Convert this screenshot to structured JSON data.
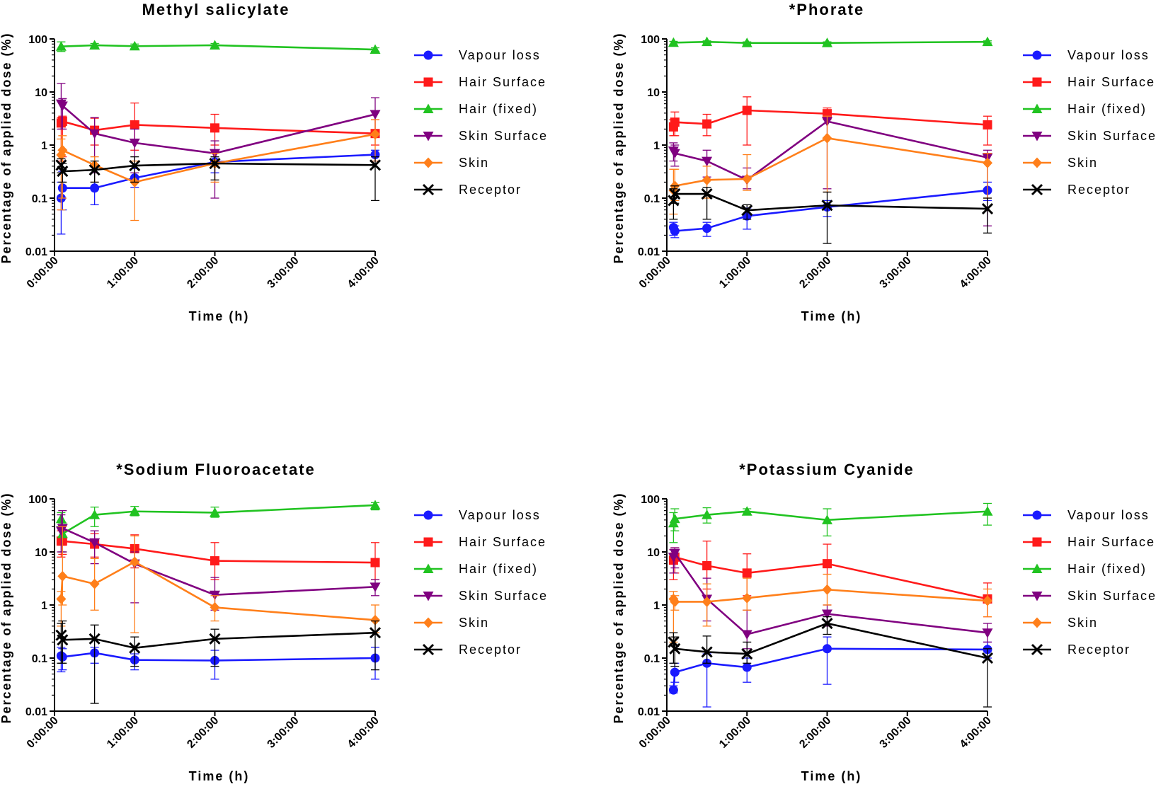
{
  "legend_entries": [
    "Vapour loss",
    "Hair Surface",
    "Hair (fixed)",
    "Skin Surface",
    "Skin",
    "Receptor"
  ],
  "chart_data": [
    {
      "type": "line",
      "title": "Methyl salicylate",
      "xlabel": "Time (h)",
      "ylabel": "Percentage of applied dose (%)",
      "yscale": "log",
      "ylim": [
        0.01,
        100
      ],
      "xlim": [
        0,
        4
      ],
      "x_ticks": [
        0,
        1,
        2,
        3,
        4
      ],
      "x_tick_labels": [
        "0:00:00",
        "1:00:00",
        "2:00:00",
        "3:00:00",
        "4:00:00"
      ],
      "y_ticks": [
        0.01,
        0.1,
        1,
        10,
        100
      ],
      "y_tick_labels": [
        "0.01",
        "0.1",
        "1",
        "10",
        "100"
      ],
      "legend_position": "right",
      "series": [
        {
          "name": "Vapour loss",
          "color": "#1a1aff",
          "marker": "circle",
          "x": [
            0.083,
            0.1,
            0.5,
            1,
            2,
            4
          ],
          "values": [
            0.1,
            0.155,
            0.155,
            0.24,
            0.48,
            0.66
          ],
          "err_low": [
            0.021,
            0.06,
            0.075,
            0.16,
            0.3,
            0.5
          ],
          "err_high": [
            0.2,
            0.32,
            0.3,
            0.36,
            0.6,
            0.8
          ]
        },
        {
          "name": "Hair Surface",
          "color": "#ff1a1a",
          "marker": "square",
          "x": [
            0.083,
            0.1,
            0.5,
            1,
            2,
            4
          ],
          "values": [
            2.6,
            2.8,
            1.9,
            2.4,
            2.1,
            1.65
          ],
          "err_low": [
            0.5,
            0.6,
            1.0,
            0.8,
            1.0,
            1.0
          ],
          "err_high": [
            3.3,
            3.5,
            3.2,
            6.2,
            3.8,
            3.0
          ]
        },
        {
          "name": "Hair (fixed)",
          "color": "#21c321",
          "marker": "triangle-up",
          "x": [
            0.083,
            0.5,
            1,
            2,
            4
          ],
          "values": [
            72,
            76,
            73,
            76,
            63
          ],
          "err_low": [
            58,
            70,
            66,
            70,
            58
          ],
          "err_high": [
            88,
            82,
            80,
            82,
            68
          ]
        },
        {
          "name": "Skin Surface",
          "color": "#800080",
          "marker": "triangle-down",
          "x": [
            0.083,
            0.1,
            0.5,
            1,
            2,
            4
          ],
          "values": [
            6.0,
            5.5,
            1.65,
            1.1,
            0.7,
            3.8
          ],
          "err_low": [
            2.0,
            2.0,
            0.3,
            0.3,
            0.1,
            1.5
          ],
          "err_high": [
            14.5,
            7.5,
            3.3,
            2.0,
            1.2,
            7.8
          ]
        },
        {
          "name": "Skin",
          "color": "#ff7f1a",
          "marker": "diamond",
          "x": [
            0.083,
            0.1,
            0.5,
            1,
            2,
            4
          ],
          "values": [
            0.65,
            0.8,
            0.42,
            0.2,
            0.45,
            1.6
          ],
          "err_low": [
            0.06,
            0.1,
            0.2,
            0.038,
            0.2,
            0.5
          ],
          "err_high": [
            1.3,
            1.5,
            0.6,
            0.5,
            0.7,
            3.0
          ]
        },
        {
          "name": "Receptor",
          "color": "#000000",
          "marker": "x",
          "x": [
            0.083,
            0.1,
            0.5,
            1,
            2,
            4
          ],
          "values": [
            0.42,
            0.32,
            0.34,
            0.41,
            0.45,
            0.42
          ],
          "err_low": [
            0.3,
            0.2,
            0.2,
            0.2,
            0.22,
            0.09
          ],
          "err_high": [
            0.55,
            0.45,
            0.5,
            0.6,
            0.6,
            0.6
          ]
        }
      ]
    },
    {
      "type": "line",
      "title": "*Phorate",
      "xlabel": "Time (h)",
      "ylabel": "Percentage of applied dose (%)",
      "yscale": "log",
      "ylim": [
        0.01,
        100
      ],
      "xlim": [
        0,
        4
      ],
      "x_ticks": [
        0,
        1,
        2,
        3,
        4
      ],
      "x_tick_labels": [
        "0:00:00",
        "1:00:00",
        "2:00:00",
        "3:00:00",
        "4:00:00"
      ],
      "y_ticks": [
        0.01,
        0.1,
        1,
        10,
        100
      ],
      "y_tick_labels": [
        "0.01",
        "0.1",
        "1",
        "10",
        "100"
      ],
      "legend_position": "right",
      "series": [
        {
          "name": "Vapour loss",
          "color": "#1a1aff",
          "marker": "circle",
          "x": [
            0.083,
            0.1,
            0.5,
            1,
            2,
            4
          ],
          "values": [
            0.028,
            0.024,
            0.027,
            0.046,
            0.068,
            0.14
          ],
          "err_low": [
            0.02,
            0.018,
            0.019,
            0.026,
            0.045,
            0.09
          ],
          "err_high": [
            0.035,
            0.03,
            0.035,
            0.065,
            0.09,
            0.2
          ]
        },
        {
          "name": "Hair Surface",
          "color": "#ff1a1a",
          "marker": "square",
          "x": [
            0.083,
            0.1,
            0.5,
            1,
            2,
            4
          ],
          "values": [
            2.2,
            2.7,
            2.5,
            4.5,
            3.9,
            2.4
          ],
          "err_low": [
            1.5,
            1.5,
            1.5,
            1.0,
            3.0,
            1.0
          ],
          "err_high": [
            3.0,
            4.2,
            3.8,
            8.1,
            5.0,
            3.5
          ]
        },
        {
          "name": "Hair (fixed)",
          "color": "#21c321",
          "marker": "triangle-up",
          "x": [
            0.083,
            0.5,
            1,
            2,
            4
          ],
          "values": [
            85,
            88,
            84,
            84,
            88
          ],
          "err_low": [
            78,
            84,
            80,
            80,
            84
          ],
          "err_high": [
            90,
            92,
            88,
            88,
            92
          ]
        },
        {
          "name": "Skin Surface",
          "color": "#800080",
          "marker": "triangle-down",
          "x": [
            0.083,
            0.1,
            0.5,
            1,
            2,
            4
          ],
          "values": [
            0.78,
            0.7,
            0.5,
            0.22,
            2.8,
            0.58
          ],
          "err_low": [
            0.5,
            0.4,
            0.25,
            0.15,
            0.15,
            0.03
          ],
          "err_high": [
            1.1,
            1.0,
            0.8,
            0.37,
            3.5,
            0.8
          ]
        },
        {
          "name": "Skin",
          "color": "#ff7f1a",
          "marker": "diamond",
          "x": [
            0.083,
            0.1,
            0.5,
            1,
            2,
            4
          ],
          "values": [
            0.14,
            0.17,
            0.22,
            0.23,
            1.35,
            0.46
          ],
          "err_low": [
            0.05,
            0.09,
            0.1,
            0.14,
            0.13,
            0.1
          ],
          "err_high": [
            0.35,
            0.35,
            0.4,
            0.66,
            3.5,
            0.7
          ]
        },
        {
          "name": "Receptor",
          "color": "#000000",
          "marker": "x",
          "x": [
            0.083,
            0.1,
            0.5,
            1,
            2,
            4
          ],
          "values": [
            0.09,
            0.12,
            0.12,
            0.059,
            0.073,
            0.063
          ],
          "err_low": [
            0.04,
            0.08,
            0.04,
            0.04,
            0.014,
            0.022
          ],
          "err_high": [
            0.15,
            0.17,
            0.16,
            0.075,
            0.13,
            0.1
          ]
        }
      ]
    },
    {
      "type": "line",
      "title": "*Sodium Fluoroacetate",
      "xlabel": "Time (h)",
      "ylabel": "Percentage of applied dose (%)",
      "yscale": "log",
      "ylim": [
        0.01,
        100
      ],
      "xlim": [
        0,
        4
      ],
      "x_ticks": [
        0,
        1,
        2,
        3,
        4
      ],
      "x_tick_labels": [
        "0:00:00",
        "1:00:00",
        "2:00:00",
        "3:00:00",
        "4:00:00"
      ],
      "y_ticks": [
        0.01,
        0.1,
        1,
        10,
        100
      ],
      "y_tick_labels": [
        "0.01",
        "0.1",
        "1",
        "10",
        "100"
      ],
      "legend_position": "right",
      "series": [
        {
          "name": "Vapour loss",
          "color": "#1a1aff",
          "marker": "circle",
          "x": [
            0.083,
            0.1,
            0.5,
            1,
            2,
            4
          ],
          "values": [
            0.11,
            0.105,
            0.125,
            0.092,
            0.09,
            0.1
          ],
          "err_low": [
            0.055,
            0.06,
            0.08,
            0.06,
            0.04,
            0.04
          ],
          "err_high": [
            0.16,
            0.15,
            0.16,
            0.12,
            0.14,
            0.16
          ]
        },
        {
          "name": "Hair Surface",
          "color": "#ff1a1a",
          "marker": "square",
          "x": [
            0.083,
            0.1,
            0.5,
            1,
            2,
            4
          ],
          "values": [
            16,
            16,
            14,
            11.5,
            6.8,
            6.3
          ],
          "err_low": [
            8,
            9,
            8,
            5,
            3,
            3
          ],
          "err_high": [
            25,
            25,
            22,
            21,
            15,
            15
          ]
        },
        {
          "name": "Hair (fixed)",
          "color": "#21c321",
          "marker": "triangle-up",
          "x": [
            0.083,
            0.1,
            0.5,
            1,
            2,
            4
          ],
          "values": [
            42,
            22,
            50,
            58,
            55,
            76
          ],
          "err_low": [
            30,
            10,
            30,
            48,
            45,
            62
          ],
          "err_high": [
            55,
            35,
            70,
            72,
            70,
            85
          ]
        },
        {
          "name": "Skin Surface",
          "color": "#800080",
          "marker": "triangle-down",
          "x": [
            0.083,
            0.1,
            0.5,
            1,
            2,
            4
          ],
          "values": [
            25,
            28,
            15,
            6.0,
            1.55,
            2.2
          ],
          "err_low": [
            10,
            10,
            6,
            1.1,
            0.8,
            1.5
          ],
          "err_high": [
            50,
            60,
            25,
            10,
            3.3,
            3.0
          ]
        },
        {
          "name": "Skin",
          "color": "#ff7f1a",
          "marker": "diamond",
          "x": [
            0.083,
            0.1,
            0.5,
            1,
            2,
            4
          ],
          "values": [
            1.3,
            3.5,
            2.5,
            6.5,
            0.9,
            0.52
          ],
          "err_low": [
            0.4,
            1.0,
            0.8,
            0.3,
            0.5,
            0.3
          ],
          "err_high": [
            1.8,
            30,
            7.5,
            20,
            1.5,
            1.0
          ]
        },
        {
          "name": "Receptor",
          "color": "#000000",
          "marker": "x",
          "x": [
            0.083,
            0.1,
            0.5,
            1,
            2,
            4
          ],
          "values": [
            0.27,
            0.22,
            0.23,
            0.155,
            0.23,
            0.3
          ],
          "err_low": [
            0.08,
            0.08,
            0.014,
            0.07,
            0.07,
            0.06
          ],
          "err_high": [
            0.45,
            0.5,
            0.42,
            0.25,
            0.35,
            0.5
          ]
        }
      ]
    },
    {
      "type": "line",
      "title": "*Potassium Cyanide",
      "xlabel": "Time (h)",
      "ylabel": "Percentage of applied dose (%)",
      "yscale": "log",
      "ylim": [
        0.01,
        100
      ],
      "xlim": [
        0,
        4
      ],
      "x_ticks": [
        0,
        1,
        2,
        3,
        4
      ],
      "x_tick_labels": [
        "0:00:00",
        "1:00:00",
        "2:00:00",
        "3:00:00",
        "4:00:00"
      ],
      "y_ticks": [
        0.01,
        0.1,
        1,
        10,
        100
      ],
      "y_tick_labels": [
        "0.01",
        "0.1",
        "1",
        "10",
        "100"
      ],
      "legend_position": "right",
      "series": [
        {
          "name": "Vapour loss",
          "color": "#1a1aff",
          "marker": "circle",
          "x": [
            0.083,
            0.1,
            0.5,
            1,
            2,
            4
          ],
          "values": [
            0.025,
            0.054,
            0.08,
            0.067,
            0.15,
            0.145
          ],
          "err_low": [
            0.022,
            0.035,
            0.012,
            0.035,
            0.032,
            0.1
          ],
          "err_high": [
            0.03,
            0.08,
            0.12,
            0.1,
            0.25,
            0.2
          ]
        },
        {
          "name": "Hair Surface",
          "color": "#ff1a1a",
          "marker": "square",
          "x": [
            0.083,
            0.1,
            0.5,
            1,
            2,
            4
          ],
          "values": [
            7.0,
            8.0,
            5.5,
            4.0,
            6.0,
            1.3
          ],
          "err_low": [
            3.0,
            4.0,
            2.0,
            1.5,
            2.0,
            0.6
          ],
          "err_high": [
            11,
            12,
            16,
            9.2,
            14,
            2.6
          ]
        },
        {
          "name": "Hair (fixed)",
          "color": "#21c321",
          "marker": "triangle-up",
          "x": [
            0.083,
            0.1,
            0.5,
            1,
            2,
            4
          ],
          "values": [
            35,
            42,
            50,
            58,
            40,
            58
          ],
          "err_low": [
            15,
            25,
            35,
            50,
            20,
            32
          ],
          "err_high": [
            55,
            65,
            68,
            65,
            65,
            82
          ]
        },
        {
          "name": "Skin Surface",
          "color": "#800080",
          "marker": "triangle-down",
          "x": [
            0.083,
            0.1,
            0.5,
            1,
            2,
            4
          ],
          "values": [
            8.0,
            9.5,
            1.3,
            0.28,
            0.68,
            0.3
          ],
          "err_low": [
            4.0,
            5.0,
            0.5,
            0.15,
            0.4,
            0.2
          ],
          "err_high": [
            11,
            12,
            3.2,
            0.8,
            1.0,
            0.45
          ]
        },
        {
          "name": "Skin",
          "color": "#ff7f1a",
          "marker": "diamond",
          "x": [
            0.083,
            0.1,
            0.5,
            1,
            2,
            4
          ],
          "values": [
            1.3,
            1.15,
            1.15,
            1.35,
            1.95,
            1.2
          ],
          "err_low": [
            0.2,
            0.8,
            0.4,
            0.8,
            1.0,
            0.6
          ],
          "err_high": [
            1.8,
            1.5,
            2.5,
            3.2,
            3.8,
            2.0
          ]
        },
        {
          "name": "Receptor",
          "color": "#000000",
          "marker": "x",
          "x": [
            0.083,
            0.1,
            0.5,
            1,
            2,
            4
          ],
          "values": [
            0.2,
            0.15,
            0.13,
            0.12,
            0.45,
            0.1
          ],
          "err_low": [
            0.08,
            0.07,
            0.08,
            0.08,
            0.28,
            0.012
          ],
          "err_high": [
            0.3,
            0.25,
            0.26,
            0.2,
            0.6,
            0.15
          ]
        }
      ]
    }
  ]
}
